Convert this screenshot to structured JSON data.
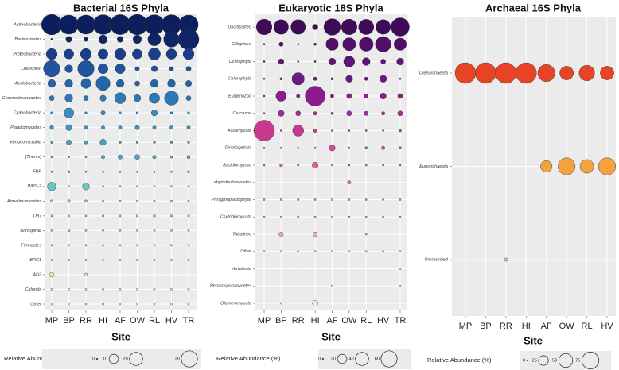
{
  "chart_data": [
    {
      "type": "scatter",
      "title": "Bacterial 16S Phyla",
      "xlabel": "Site",
      "ylabel": "",
      "sites": [
        "MP",
        "BP",
        "RR",
        "HI",
        "AF",
        "OW",
        "RL",
        "HV",
        "TR"
      ],
      "phyla": [
        "Actinobacteria",
        "Bacteroidetes",
        "Proteobacteria",
        "Chloroflexi",
        "Acidobacteria",
        "Gemmatimonadetes",
        "Cyanobacteria",
        "Planctomycetes",
        "Verrucomicrobia",
        "[Thermi]",
        "FBP",
        "WPS-2",
        "Armatimonadetes",
        "TM7",
        "Nitrospirae",
        "Firmicutes",
        "BRC1",
        "AD3",
        "Chlorobi",
        "Other"
      ],
      "abundance": [
        [
          34,
          30,
          30,
          32,
          33,
          34,
          32,
          32,
          30
        ],
        [
          0.3,
          3,
          1.5,
          6,
          3,
          6,
          14,
          20,
          35
        ],
        [
          10,
          8,
          10,
          8,
          10,
          8,
          12,
          9,
          10
        ],
        [
          22,
          5,
          22,
          8,
          8,
          1.5,
          3,
          1.5,
          2
        ],
        [
          5,
          5,
          8,
          16,
          5,
          2,
          5,
          5,
          3
        ],
        [
          2,
          5,
          2,
          3,
          10,
          4,
          9,
          16,
          2
        ],
        [
          0.4,
          8,
          0.4,
          1.5,
          0.4,
          0.4,
          3,
          0.4,
          0.4
        ],
        [
          1.2,
          3,
          1,
          1,
          1,
          1.5,
          1,
          1,
          1
        ],
        [
          0.4,
          2,
          1,
          3,
          0.4,
          0.4,
          0.4,
          0.4,
          0.4
        ],
        [
          0.1,
          0.2,
          0.1,
          1,
          1.5,
          2,
          1,
          0.4,
          0.8
        ],
        [
          0.1,
          0.4,
          0.1,
          0.2,
          0.1,
          0.1,
          0.1,
          0.2,
          0.4
        ],
        [
          6,
          0.2,
          4,
          0.1,
          0.1,
          0.1,
          0.1,
          0.1,
          0.1
        ],
        [
          0.5,
          0.6,
          0.5,
          0.2,
          0.1,
          0.1,
          0.1,
          0.1,
          0.2
        ],
        [
          0.1,
          0.2,
          0.1,
          0.3,
          0.3,
          0.3,
          0.4,
          0.3,
          0.3
        ],
        [
          0.1,
          0.5,
          0.1,
          0.1,
          0.1,
          0.1,
          0.1,
          0.1,
          0.1
        ],
        [
          0.2,
          0.1,
          0.1,
          0.1,
          0.1,
          0.1,
          0.1,
          0.1,
          0.2
        ],
        [
          0.1,
          0.1,
          0.1,
          0.1,
          0.1,
          0.2,
          0.3,
          0.2,
          0.3
        ],
        [
          1.8,
          0,
          0.8,
          0,
          0,
          0,
          0,
          0,
          0
        ],
        [
          0.1,
          0.1,
          0.1,
          0.1,
          0.1,
          0.1,
          0.1,
          0.1,
          0.1
        ],
        [
          0.2,
          0.1,
          0.2,
          0.1,
          0.1,
          0.1,
          0.1,
          0.1,
          0.2
        ]
      ],
      "colors": [
        "#0b1f5c",
        "#0f2565",
        "#1a3e8c",
        "#20549e",
        "#2464a8",
        "#2a7aba",
        "#3a8ec4",
        "#3b97c5",
        "#42a2c4",
        "#4aadc4",
        "#56b9c2",
        "#6ac6c1",
        "#7fcfbe",
        "#8fd6ba",
        "#a4deb6",
        "#b7e5b4",
        "#cbecb3",
        "#dcf1b2",
        "#e9f6b5",
        "#f6fbc6"
      ],
      "legend": {
        "title": "Relative Abundance (%)",
        "values": [
          0,
          10,
          20,
          30
        ],
        "labels": [
          "0",
          "10",
          "20",
          "30"
        ],
        "max": 35
      }
    },
    {
      "type": "scatter",
      "title": "Eukaryotic 18S Phyla",
      "xlabel": "Site",
      "ylabel": "",
      "sites": [
        "MP",
        "BP",
        "RR",
        "HI",
        "AF",
        "OW",
        "RL",
        "HV",
        "TR"
      ],
      "phyla": [
        "Unclassified",
        "Ciliophora",
        "Ochrophyta",
        "Chlorophyta",
        "Euglenozoa",
        "Cercozoa",
        "Ascomycota",
        "Dinoflagellata",
        "Basidiomycota",
        "Labyrinthulomycetes",
        "Phragmoplastophyta",
        "Chytridiomycota",
        "Tubulinea",
        "Other",
        "Vertebrata",
        "Peronosporomycetes",
        "Glomeromycota"
      ],
      "abundance": [
        [
          40,
          35,
          35,
          5,
          45,
          40,
          38,
          35,
          55
        ],
        [
          0.5,
          3,
          0.5,
          1,
          25,
          28,
          32,
          40,
          25
        ],
        [
          0.5,
          5,
          0.3,
          0.5,
          8,
          20,
          10,
          4,
          8
        ],
        [
          0.3,
          1,
          25,
          2,
          1,
          8,
          2,
          8,
          0.5
        ],
        [
          0.3,
          18,
          2,
          65,
          2,
          4,
          3,
          6,
          4
        ],
        [
          0.5,
          6,
          4,
          2,
          1,
          4,
          3,
          2,
          4
        ],
        [
          70,
          0.5,
          20,
          2,
          0.3,
          0.5,
          0.5,
          0.5,
          1
        ],
        [
          0.4,
          0.4,
          0.4,
          0.4,
          6,
          0.5,
          1,
          2,
          1
        ],
        [
          0.3,
          1.5,
          0.5,
          6,
          0.3,
          0.3,
          0.3,
          0.3,
          0.3
        ],
        [
          0,
          0,
          0,
          0,
          0,
          2,
          0,
          0,
          0
        ],
        [
          0.2,
          0.3,
          0.6,
          0.3,
          0.2,
          0.2,
          0.2,
          0.2,
          0.3
        ],
        [
          0.1,
          0.2,
          0.1,
          0.1,
          0.1,
          0.1,
          0.1,
          0.1,
          0.1
        ],
        [
          0,
          3,
          0,
          3,
          0,
          0,
          0.2,
          0,
          0
        ],
        [
          0.1,
          0.4,
          0.1,
          0.1,
          0.1,
          0.1,
          0.1,
          0.1,
          0.2
        ],
        [
          0,
          0,
          0,
          0,
          0,
          0,
          0,
          0,
          0.2
        ],
        [
          0,
          0,
          0,
          0,
          0.2,
          0,
          0,
          0,
          0.2
        ],
        [
          0,
          0.1,
          0,
          5,
          0,
          0,
          0,
          0,
          0
        ]
      ],
      "colors": [
        "#3d0b5a",
        "#520f6a",
        "#5f1476",
        "#6a1a80",
        "#8e1a92",
        "#a32a9a",
        "#c8398f",
        "#d84a95",
        "#e55e97",
        "#e8709f",
        "#ec83a6",
        "#ef96ae",
        "#f2a9b8",
        "#f5bbc3",
        "#f7cbcf",
        "#f9d9da",
        "#fbe7e6"
      ],
      "legend": {
        "title": "Relative Abundance (%)",
        "values": [
          0,
          20,
          40,
          60
        ],
        "labels": [
          "0",
          "20",
          "40",
          "60"
        ],
        "max": 70
      }
    },
    {
      "type": "scatter",
      "title": "Archaeal 16S Phyla",
      "xlabel": "Site",
      "ylabel": "",
      "sites": [
        "MP",
        "BP",
        "RR",
        "HI",
        "AF",
        "OW",
        "RL",
        "HV"
      ],
      "phyla": [
        "Crenarchaeota",
        "Euryarchaeota",
        "Unclassified"
      ],
      "abundance": [
        [
          80,
          80,
          80,
          80,
          55,
          35,
          45,
          35
        ],
        [
          0,
          0,
          0,
          0,
          25,
          55,
          35,
          55
        ],
        [
          0,
          0,
          2,
          0,
          0,
          0,
          0,
          0
        ]
      ],
      "colors": [
        "#e84325",
        "#f4a23e",
        "#f6b6c0"
      ],
      "legend": {
        "title": "Relative Abundance (%)",
        "values": [
          0,
          25,
          50,
          75
        ],
        "labels": [
          "0",
          "25",
          "50",
          "75"
        ],
        "max": 80
      }
    }
  ]
}
